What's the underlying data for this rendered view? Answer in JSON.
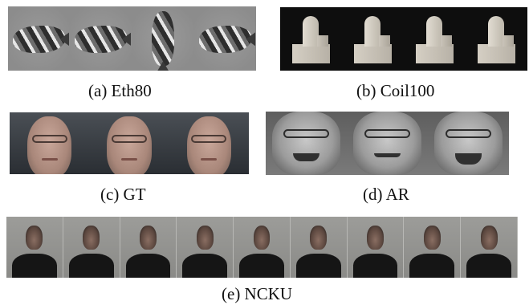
{
  "figure": {
    "panels": [
      {
        "caption": "(a) Eth80",
        "images": 4
      },
      {
        "caption": "(b) Coil100",
        "images": 4
      },
      {
        "caption": "(c) GT",
        "images": 3
      },
      {
        "caption": "(d) AR",
        "images": 3
      },
      {
        "caption": "(e) NCKU",
        "images": 9
      }
    ]
  }
}
